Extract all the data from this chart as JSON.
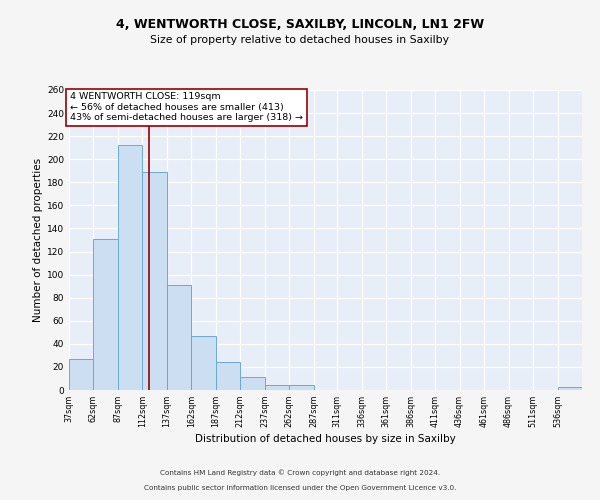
{
  "title1": "4, WENTWORTH CLOSE, SAXILBY, LINCOLN, LN1 2FW",
  "title2": "Size of property relative to detached houses in Saxilby",
  "xlabel": "Distribution of detached houses by size in Saxilby",
  "ylabel": "Number of detached properties",
  "bar_color": "#ccdff2",
  "bar_edge_color": "#6aaad4",
  "bin_edges": [
    37,
    62,
    87,
    112,
    137,
    162,
    187,
    212,
    237,
    262,
    287,
    311,
    336,
    361,
    386,
    411,
    436,
    461,
    486,
    511,
    536,
    561
  ],
  "bin_labels": [
    "37sqm",
    "62sqm",
    "87sqm",
    "112sqm",
    "137sqm",
    "162sqm",
    "187sqm",
    "212sqm",
    "237sqm",
    "262sqm",
    "287sqm",
    "311sqm",
    "336sqm",
    "361sqm",
    "386sqm",
    "411sqm",
    "436sqm",
    "461sqm",
    "486sqm",
    "511sqm",
    "536sqm"
  ],
  "counts": [
    27,
    131,
    212,
    189,
    91,
    47,
    24,
    11,
    4,
    4,
    0,
    0,
    0,
    0,
    0,
    0,
    0,
    0,
    0,
    0,
    3
  ],
  "vline_x": 119,
  "vline_color": "#990000",
  "annotation_title": "4 WENTWORTH CLOSE: 119sqm",
  "annotation_line1": "← 56% of detached houses are smaller (413)",
  "annotation_line2": "43% of semi-detached houses are larger (318) →",
  "annotation_box_color": "#ffffff",
  "annotation_box_edge": "#990000",
  "ylim": [
    0,
    260
  ],
  "yticks": [
    0,
    20,
    40,
    60,
    80,
    100,
    120,
    140,
    160,
    180,
    200,
    220,
    240,
    260
  ],
  "background_color": "#e8eef8",
  "fig_background": "#f5f5f5",
  "footer1": "Contains HM Land Registry data © Crown copyright and database right 2024.",
  "footer2": "Contains public sector information licensed under the Open Government Licence v3.0."
}
